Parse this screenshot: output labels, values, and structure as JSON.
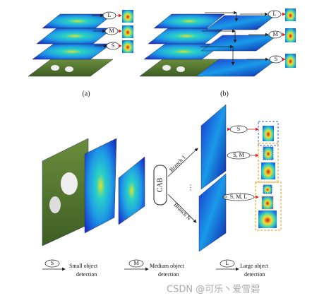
{
  "panel_a": {
    "labels": [
      "L",
      "M",
      "S"
    ],
    "caption": "(a)"
  },
  "panel_b": {
    "labels": [
      "L",
      "M",
      "S"
    ],
    "caption": "(b)"
  },
  "panel_c": {
    "module": "CAB",
    "branches": [
      "Branch 1",
      "Branch N"
    ],
    "ellipsis": "⋮",
    "outputs": [
      "S",
      "S, M",
      "S, M, L"
    ]
  },
  "legend": [
    {
      "key": "S",
      "lines": [
        "Small object",
        "detection"
      ]
    },
    {
      "key": "M",
      "lines": [
        "Medium object",
        "detection"
      ]
    },
    {
      "key": "L",
      "lines": [
        "Large object",
        "detection"
      ]
    }
  ],
  "watermark": "CSDN @可乐丶爱雪碧"
}
